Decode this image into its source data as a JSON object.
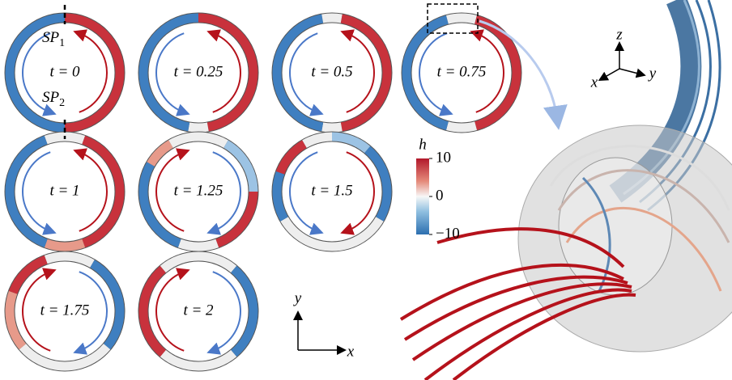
{
  "panels": [
    {
      "label": "t = 0"
    },
    {
      "label": "t = 0.25"
    },
    {
      "label": "t = 0.5"
    },
    {
      "label": "t = 0.75"
    },
    {
      "label": "t = 1"
    },
    {
      "label": "t = 1.25"
    },
    {
      "label": "t = 1.5"
    },
    {
      "label": "t = 1.75"
    },
    {
      "label": "t = 2"
    }
  ],
  "stagnation_points": [
    {
      "text": "SP",
      "sub": "1"
    },
    {
      "text": "SP",
      "sub": "2"
    }
  ],
  "axes_2d": {
    "x": "x",
    "y": "y"
  },
  "axes_3d": {
    "x": "x",
    "y": "y",
    "z": "z"
  },
  "colorbar": {
    "title": "h",
    "lim": [
      -10,
      10
    ],
    "ticks": [
      10,
      0,
      {
        "value": -10,
        "label": "−10"
      }
    ]
  }
}
